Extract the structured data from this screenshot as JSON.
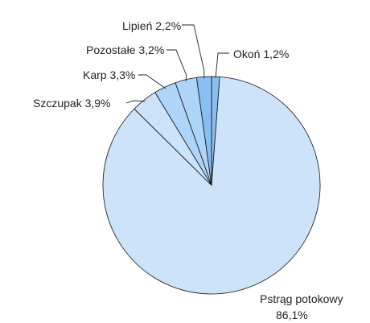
{
  "chart_data": {
    "type": "pie",
    "title": "",
    "slices": [
      {
        "label": "Okoń",
        "value": 1.2,
        "display": "Okoń 1,2%",
        "color": "#88bff3"
      },
      {
        "label": "Pstrąg potokowy",
        "value": 86.1,
        "display_line1": "Pstrąg potokowy",
        "display_line2": "86,1%",
        "color": "#cce3f9"
      },
      {
        "label": "Szczupak",
        "value": 3.9,
        "display": "Szczupak 3,9%",
        "color": "#cce3f9"
      },
      {
        "label": "Karp",
        "value": 3.3,
        "display": "Karp 3,3%",
        "color": "#aed4f7"
      },
      {
        "label": "Pozostałe",
        "value": 3.2,
        "display": "Pozostałe 3,2%",
        "color": "#aed4f7"
      },
      {
        "label": "Lipień",
        "value": 2.2,
        "display": "Lipień 2,2%",
        "color": "#88bff3"
      }
    ],
    "start_angle_deg": -90,
    "direction": "clockwise"
  }
}
